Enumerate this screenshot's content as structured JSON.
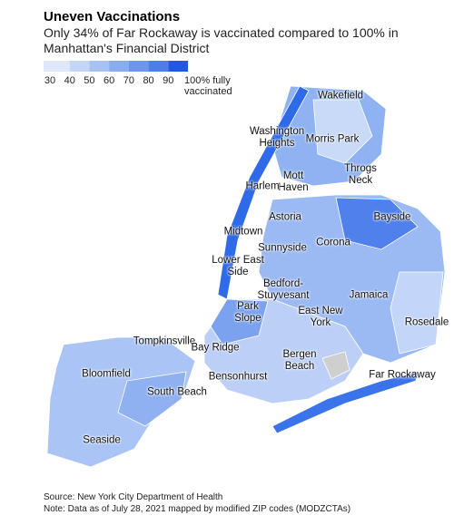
{
  "header": {
    "title": "Uneven Vaccinations",
    "subtitle": "Only 34% of Far Rockaway is vaccinated compared to 100% in Manhattan's Financial District"
  },
  "legend": {
    "colors": [
      "#dfe8fb",
      "#c4d6f8",
      "#a7c1f5",
      "#89abf1",
      "#6b95ee",
      "#4c7eeb",
      "#1f58e6"
    ],
    "ticks": [
      30,
      40,
      50,
      60,
      70,
      80,
      90,
      {
        "value": 100,
        "label": "100% fully vaccinated"
      }
    ]
  },
  "map": {
    "labels": [
      "Wakefield",
      "Washington Heights",
      "Morris Park",
      "Mott Haven",
      "Throgs Neck",
      "Harlem",
      "Astoria",
      "Bayside",
      "Midtown",
      "Sunnyside",
      "Corona",
      "Lower East Side",
      "Bedford-Stuyvesant",
      "Jamaica",
      "Park Slope",
      "East New York",
      "Rosedale",
      "Tompkinsville",
      "Bay Ridge",
      "Bergen Beach",
      "Bloomfield",
      "Bensonhurst",
      "Far Rockaway",
      "South Beach",
      "Seaside"
    ]
  },
  "footer": {
    "source": "Source: New York City Department of Health",
    "note": "Note: Data as of July 28, 2021 mapped by modified ZIP codes (MODZCTAs)"
  }
}
